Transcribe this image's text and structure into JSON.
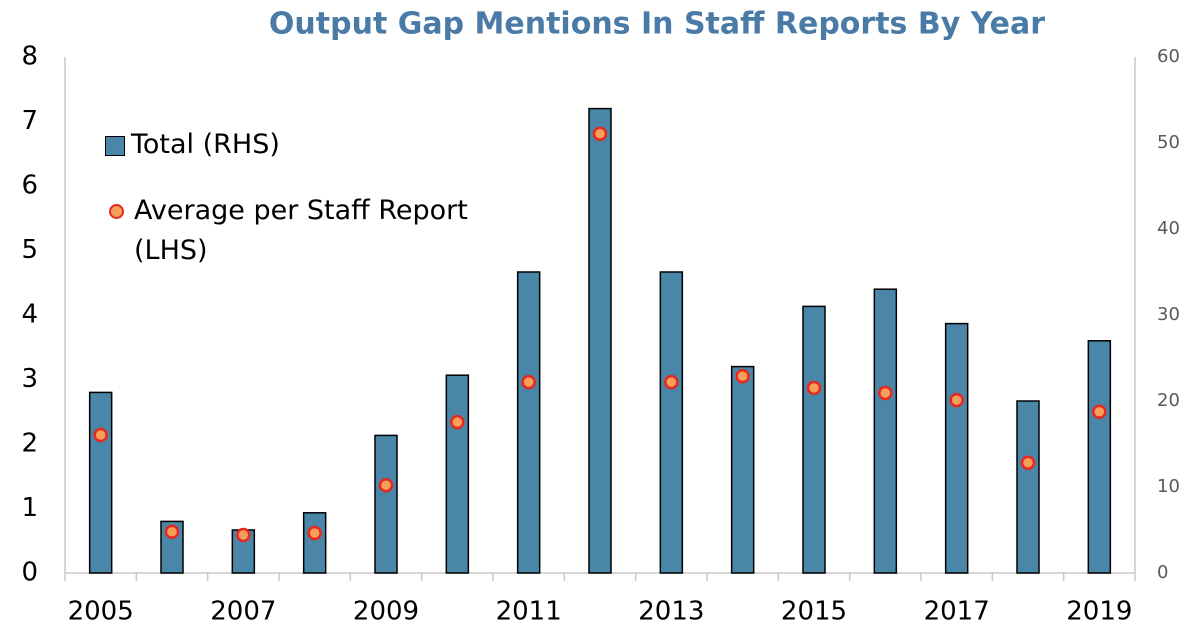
{
  "chart_data": {
    "type": "bar",
    "title": "Output Gap Mentions In Staff Reports By Year",
    "categories": [
      "2005",
      null,
      "2007",
      null,
      "2009",
      null,
      "2011",
      null,
      "2013",
      null,
      "2015",
      null,
      "2017",
      null,
      "2019"
    ],
    "series": [
      {
        "name": "Total (RHS)",
        "type": "bar",
        "axis": "y2",
        "color": "#4a86a8",
        "values": [
          21,
          6,
          5,
          7,
          16,
          23,
          35,
          54,
          35,
          24,
          31,
          33,
          29,
          20,
          27
        ]
      },
      {
        "name": "Average per Staff Report (LHS)",
        "type": "scatter",
        "axis": "y",
        "color": "#f5a05a",
        "values": [
          2.14,
          0.64,
          0.59,
          0.62,
          1.36,
          2.34,
          2.96,
          6.81,
          2.96,
          3.05,
          2.87,
          2.79,
          2.68,
          1.71,
          2.5
        ]
      }
    ],
    "ylim": [
      0,
      8
    ],
    "yticks": [
      0,
      1,
      2,
      3,
      4,
      5,
      6,
      7,
      8
    ],
    "y2lim": [
      0,
      60
    ],
    "y2ticks": [
      0,
      10,
      20,
      30,
      40,
      50,
      60
    ],
    "legend": "upper left",
    "grid": false
  }
}
